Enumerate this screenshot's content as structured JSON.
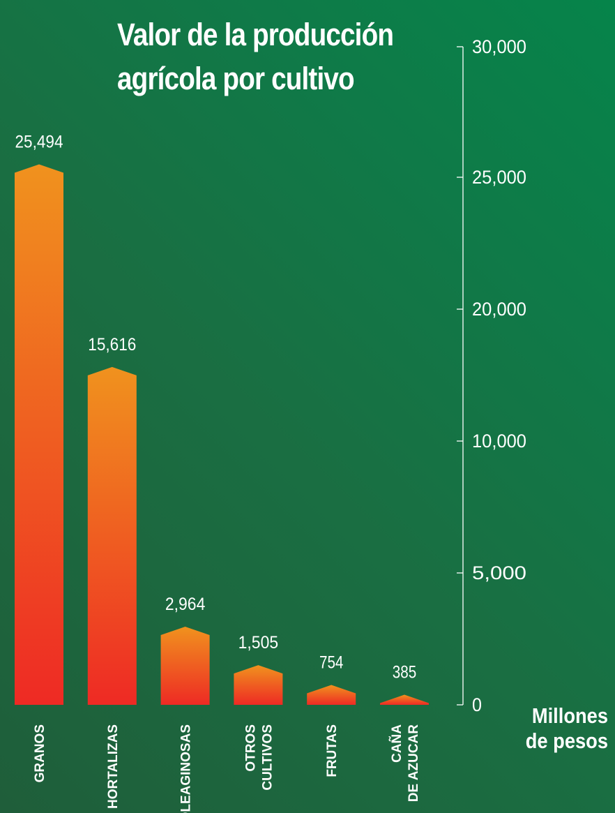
{
  "chart_data": {
    "type": "bar",
    "title_lines": [
      "Valor de la producción",
      "agrícola por cultivo"
    ],
    "unit_lines": [
      "Millones",
      "de pesos"
    ],
    "categories": [
      [
        "GRANOS"
      ],
      [
        "HORTALIZAS"
      ],
      [
        "OLEAGINOSAS"
      ],
      [
        "OTROS",
        "CULTIVOS"
      ],
      [
        "FRUTAS"
      ],
      [
        "CAÑA",
        "DE AZUCAR"
      ]
    ],
    "values": [
      25494,
      15616,
      2964,
      1505,
      754,
      385
    ],
    "value_labels": [
      "25,494",
      "15,616",
      "2,964",
      "1,505",
      "754",
      "385"
    ],
    "y_ticks": [
      0,
      5000,
      10000,
      20000,
      25000,
      30000
    ],
    "y_tick_labels": [
      "0",
      "5,000",
      "10,000",
      "20,000",
      "25,000",
      "30,000"
    ],
    "ylim": [
      0,
      30000
    ],
    "axis_position": "right",
    "grid": false,
    "colors": {
      "bar_top": "#f0921e",
      "bar_bottom": "#ee2a24",
      "text": "#ffffff",
      "axis": "#ffffff"
    }
  }
}
